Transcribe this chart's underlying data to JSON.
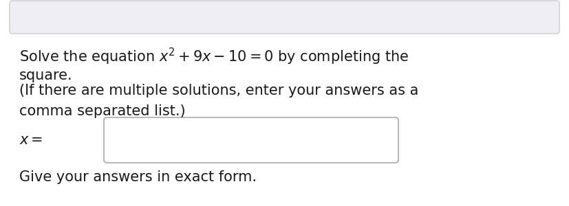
{
  "main_bg": "#ffffff",
  "top_bar_facecolor": "#eeeef4",
  "top_bar_edgecolor": "#cccccc",
  "text_color": "#1a1a1a",
  "input_box_edgecolor": "#aaaaaa",
  "input_box_facecolor": "#ffffff",
  "line1": "Solve the equation $x^2 + 9x - 10 = 0$ by completing the",
  "line2": "square.",
  "line3": "(If there are multiple solutions, enter your answers as a",
  "line4": "comma separated list.)",
  "x_label": "$x =$",
  "line5": "Give your answers in exact form.",
  "font_size": 15.0,
  "font_family": "DejaVu Sans"
}
